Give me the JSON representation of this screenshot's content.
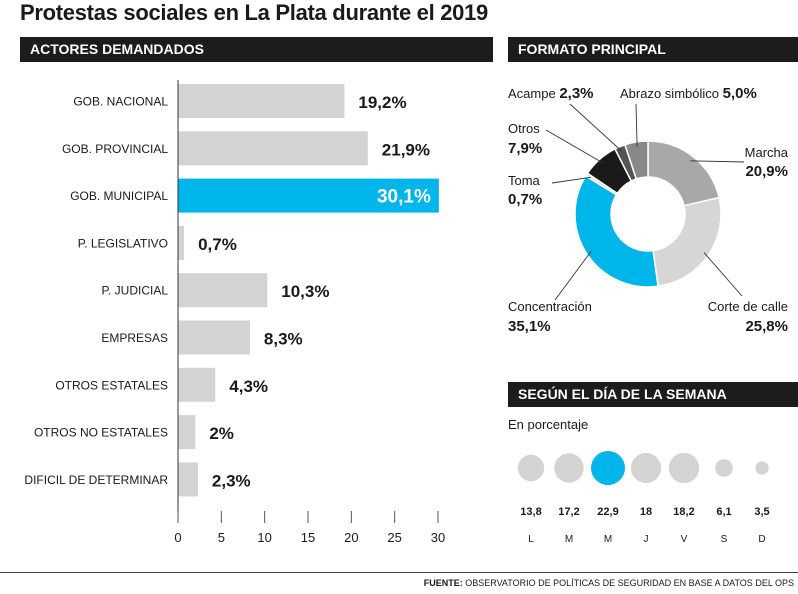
{
  "title": "Protestas sociales en La Plata durante el 2019",
  "colors": {
    "accent": "#00b5e9",
    "bar": "#d3d3d3",
    "header_bg": "#1c1c1c"
  },
  "sections": {
    "actores": "ACTORES DEMANDADOS",
    "formato": "FORMATO PRINCIPAL",
    "semana": "SEGÚN EL DÍA DE LA SEMANA"
  },
  "semana_subtitle": "En porcentaje",
  "footer": {
    "label": "FUENTE:",
    "text": "OBSERVATORIO DE POLÍTICAS DE SEGURIDAD EN BASE A DATOS DEL OPS"
  },
  "chart_data": [
    {
      "type": "bar",
      "orientation": "horizontal",
      "categories": [
        "GOB. NACIONAL",
        "GOB. PROVINCIAL",
        "GOB. MUNICIPAL",
        "P. LEGISLATIVO",
        "P. JUDICIAL",
        "EMPRESAS",
        "OTROS ESTATALES",
        "OTROS NO ESTATALES",
        "DIFICIL DE DETERMINAR"
      ],
      "values": [
        19.2,
        21.9,
        30.1,
        0.7,
        10.3,
        8.3,
        4.3,
        2,
        2.3
      ],
      "labels": [
        "19,2%",
        "21,9%",
        "30,1%",
        "0,7%",
        "10,3%",
        "8,3%",
        "4,3%",
        "2%",
        "2,3%"
      ],
      "highlight_index": 2,
      "xlim": [
        0,
        30
      ],
      "xticks": [
        "0",
        "5",
        "10",
        "15",
        "20",
        "25",
        "30"
      ]
    },
    {
      "type": "pie",
      "donut": true,
      "slices": [
        {
          "name": "Marcha",
          "label": "20,9%",
          "value": 20.9,
          "color": "#a8a8a8"
        },
        {
          "name": "Corte de calle",
          "label": "25,8%",
          "value": 25.8,
          "color": "#d6d6d6"
        },
        {
          "name": "Concentración",
          "label": "35,1%",
          "value": 35.1,
          "color": "#00b5e9"
        },
        {
          "name": "Toma",
          "label": "0,7%",
          "value": 0.7,
          "color": "#e0e0e0"
        },
        {
          "name": "Otros",
          "label": "7,9%",
          "value": 7.9,
          "color": "#1a1a1a"
        },
        {
          "name": "Acampe",
          "label": "2,3%",
          "value": 2.3,
          "color": "#555555"
        },
        {
          "name": "Abrazo simbólico",
          "label": "5,0%",
          "value": 5.0,
          "color": "#888888"
        }
      ]
    },
    {
      "type": "scatter",
      "encoding": "bubble",
      "categories": [
        "L",
        "M",
        "M",
        "J",
        "V",
        "S",
        "D"
      ],
      "values": [
        13.8,
        17.2,
        22.9,
        18,
        18.2,
        6.1,
        3.5
      ],
      "labels": [
        "13,8",
        "17,2",
        "22,9",
        "18",
        "18,2",
        "6,1",
        "3,5"
      ],
      "highlight_index": 2
    }
  ]
}
